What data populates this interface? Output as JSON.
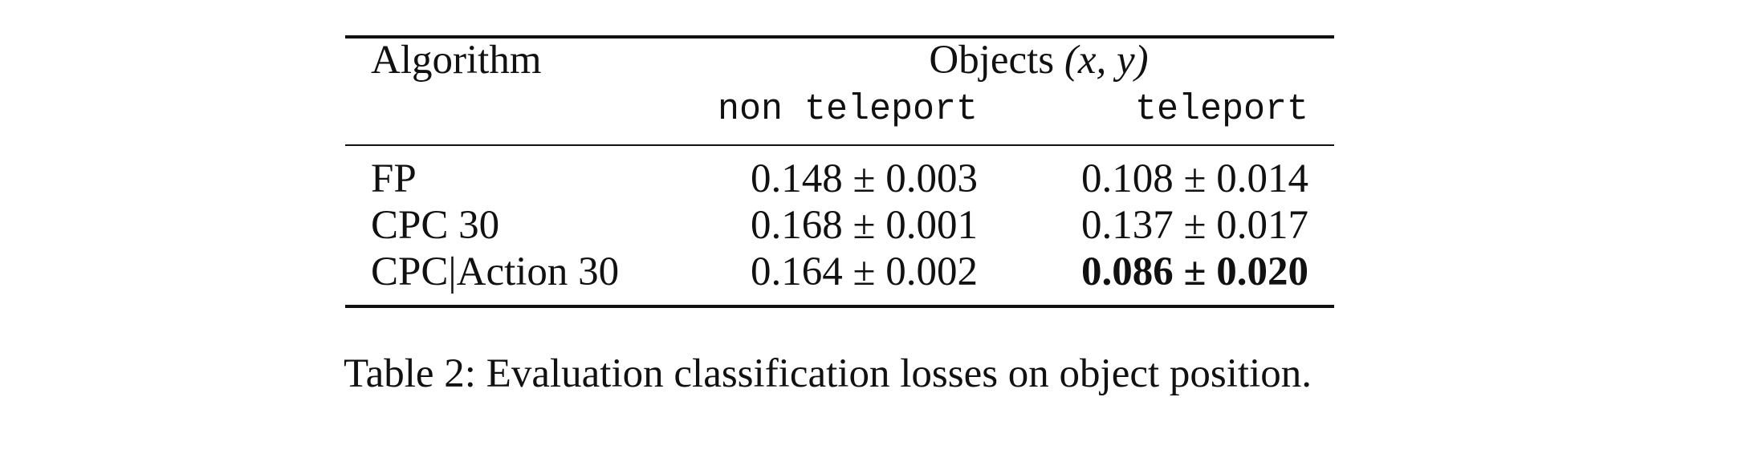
{
  "table": {
    "header": {
      "algorithm_label": "Algorithm",
      "group_label": "Objects",
      "group_math": "(x, y)",
      "col_non_teleport": "non teleport",
      "col_teleport": "teleport"
    },
    "rows": [
      {
        "algorithm": "FP",
        "non_teleport": "0.148 ± 0.003",
        "teleport": "0.108 ± 0.014",
        "teleport_bold": false
      },
      {
        "algorithm": "CPC 30",
        "non_teleport": "0.168 ± 0.001",
        "teleport": "0.137 ± 0.017",
        "teleport_bold": false
      },
      {
        "algorithm": "CPC|Action 30",
        "non_teleport": "0.164 ± 0.002",
        "teleport": "0.086 ± 0.020",
        "teleport_bold": true
      }
    ]
  },
  "caption": "Table 2: Evaluation classification losses on object position."
}
